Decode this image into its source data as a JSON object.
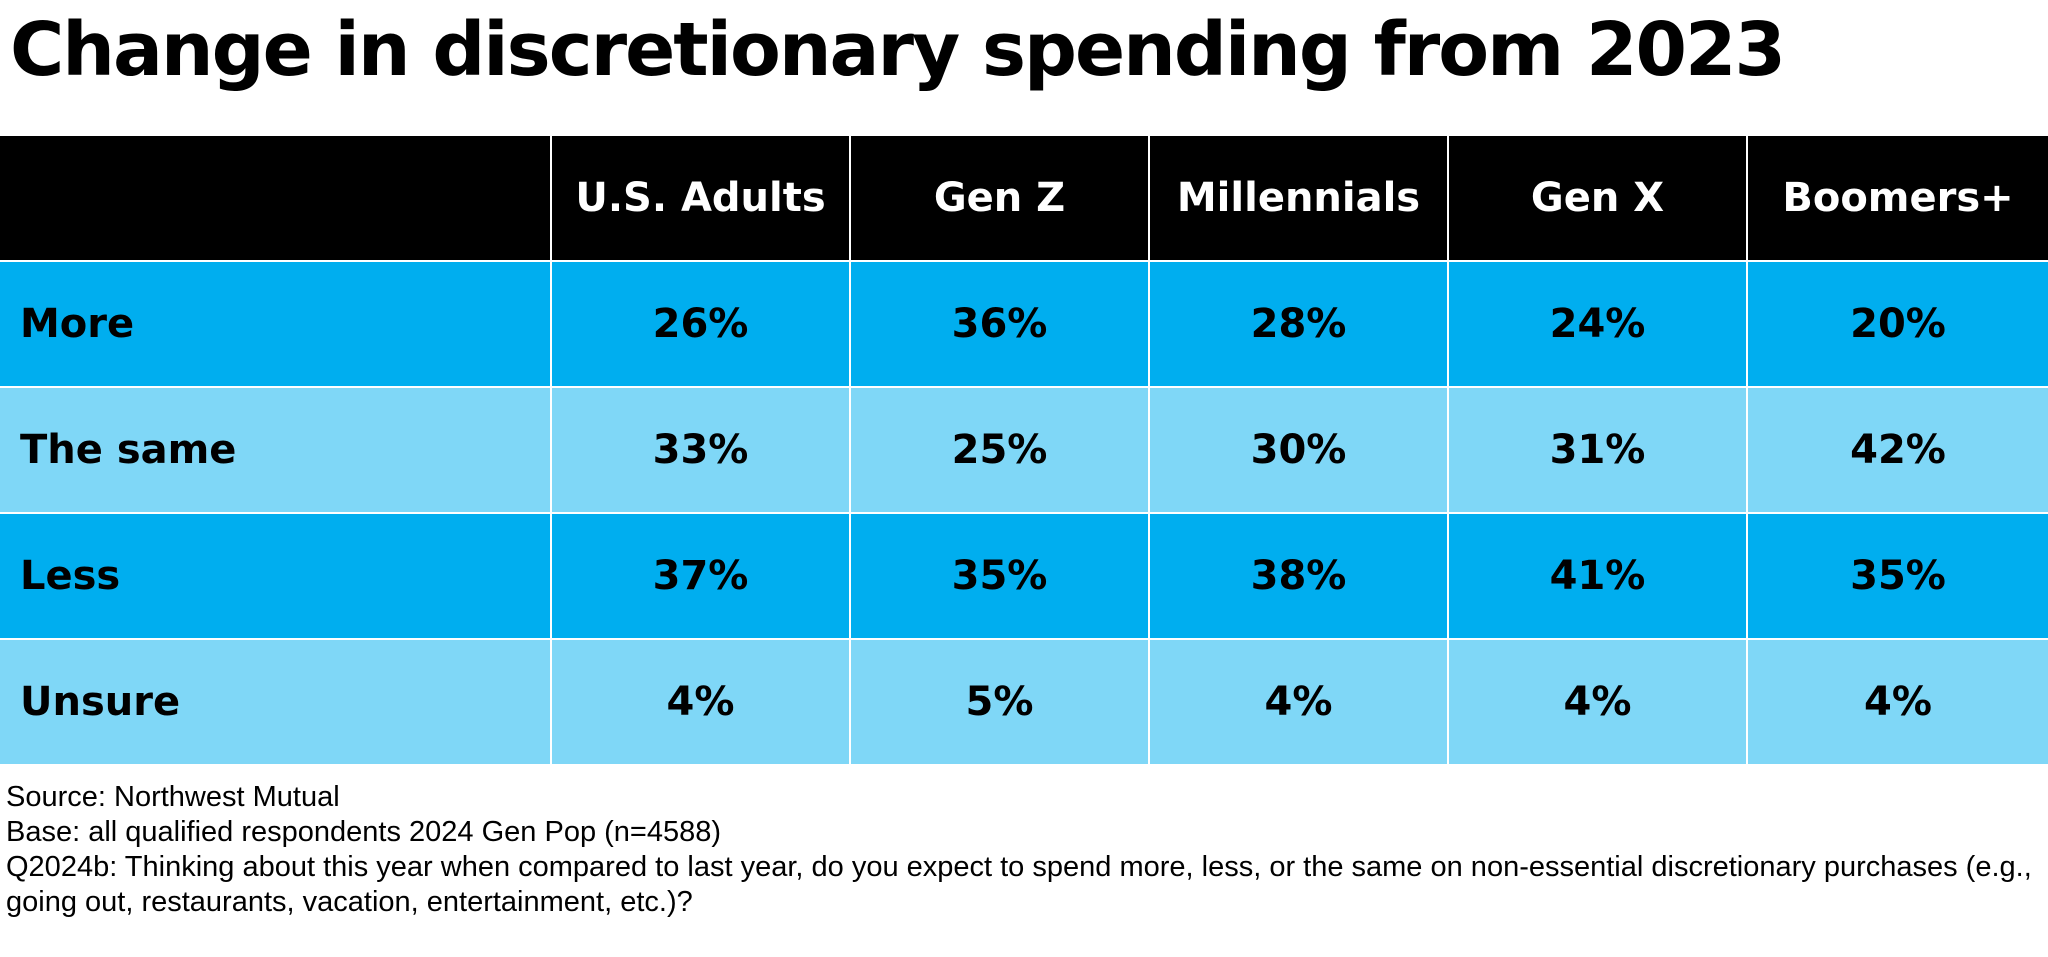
{
  "title": "Change in discretionary spending from 2023",
  "chart_data": {
    "type": "table",
    "title": "Change in discretionary spending from 2023",
    "columns": [
      "",
      "U.S. Adults",
      "Gen Z",
      "Millennials",
      "Gen X",
      "Boomers+"
    ],
    "rows": [
      {
        "label": "More",
        "values": [
          "26%",
          "36%",
          "28%",
          "24%",
          "20%"
        ]
      },
      {
        "label": "The same",
        "values": [
          "33%",
          "25%",
          "30%",
          "31%",
          "42%"
        ]
      },
      {
        "label": "Less",
        "values": [
          "37%",
          "35%",
          "38%",
          "41%",
          "35%"
        ]
      },
      {
        "label": "Unsure",
        "values": [
          "4%",
          "5%",
          "4%",
          "4%",
          "4%"
        ]
      }
    ]
  },
  "notes": {
    "source": "Source: Northwest Mutual",
    "base": "Base: all qualified respondents 2024 Gen Pop (n=4588)",
    "question": "Q2024b: Thinking about this year when compared to last year, do you expect to spend more, less, or the same on non-essential discretionary purchases (e.g., going out, restaurants, vacation, entertainment, etc.)?"
  },
  "colors": {
    "header_bg": "#000000",
    "header_text": "#ffffff",
    "row_dark": "#00aeef",
    "row_light": "#7fd7f7"
  }
}
